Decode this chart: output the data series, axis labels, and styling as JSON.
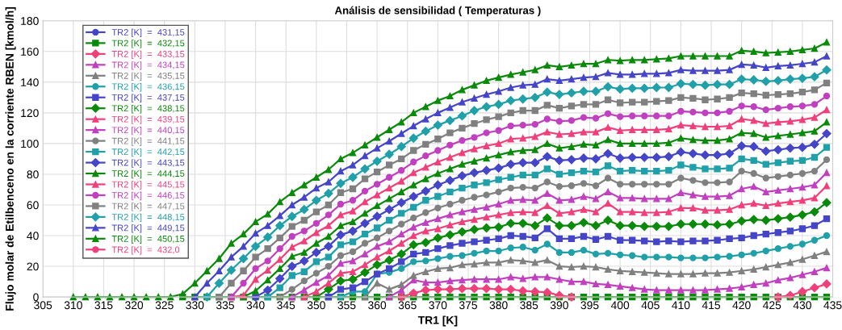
{
  "chart_data": {
    "type": "line",
    "title": "Análisis de sensibilidad ( Temperaturas )",
    "xlabel": "TR1 [K]",
    "ylabel": "Flujo molar de Etilbenceno en la corriente RBEN [kmol/h]",
    "x": [
      310,
      312,
      314,
      316,
      318,
      320,
      322,
      324,
      326,
      328,
      330,
      332,
      334,
      336,
      338,
      340,
      342,
      344,
      346,
      348,
      350,
      352,
      354,
      356,
      358,
      360,
      362,
      364,
      366,
      368,
      370,
      372,
      374,
      376,
      378,
      380,
      382,
      384,
      386,
      388,
      390,
      392,
      394,
      396,
      398,
      400,
      402,
      404,
      406,
      408,
      410,
      412,
      414,
      416,
      418,
      420,
      422,
      424,
      426,
      428,
      430,
      432,
      434
    ],
    "xlim": [
      305,
      435
    ],
    "xticks": [
      305,
      310,
      315,
      320,
      325,
      330,
      335,
      340,
      345,
      350,
      355,
      360,
      365,
      370,
      375,
      380,
      385,
      390,
      395,
      400,
      405,
      410,
      415,
      420,
      425,
      430,
      435
    ],
    "ylim": [
      0,
      180
    ],
    "yticks": [
      0,
      20,
      40,
      60,
      80,
      100,
      120,
      140,
      160,
      180
    ],
    "grid": true,
    "legend": "top left",
    "series": [
      {
        "name": "TR2 [K]  =  431,15",
        "color": "#4545c8",
        "marker": "circle",
        "values": [
          null,
          null,
          null,
          null,
          null,
          null,
          null,
          null,
          null,
          null,
          null,
          null,
          null,
          null,
          null,
          null,
          null,
          null,
          null,
          null,
          null,
          null,
          null,
          null,
          null,
          null,
          null,
          null,
          null,
          null,
          null,
          null,
          null,
          null,
          null,
          null,
          null,
          null,
          null,
          null,
          null,
          null,
          null,
          null,
          null,
          null,
          null,
          null,
          null,
          null,
          null,
          null,
          null,
          null,
          null,
          null,
          null,
          null,
          null,
          null,
          null,
          null,
          null
        ]
      },
      {
        "name": "TR2 [K]  =  432,15",
        "color": "#0a8a0a",
        "marker": "square",
        "values": [
          null,
          null,
          null,
          null,
          null,
          null,
          null,
          null,
          null,
          0,
          0,
          0,
          0,
          0,
          0,
          0,
          0,
          0,
          0,
          0,
          0,
          0,
          0,
          0,
          0,
          0,
          0,
          0,
          0,
          0,
          0,
          0,
          0,
          0,
          0,
          0,
          0,
          0,
          0,
          0,
          0,
          0,
          0,
          0,
          0,
          0,
          0,
          0,
          0,
          0,
          0,
          0,
          0,
          0,
          0,
          0,
          0,
          0,
          0,
          0,
          0,
          0,
          0
        ]
      },
      {
        "name": "TR2 [K]  =  433,15",
        "color": "#f0407a",
        "marker": "diamond",
        "values": [
          null,
          null,
          null,
          null,
          null,
          null,
          null,
          null,
          null,
          null,
          null,
          null,
          null,
          null,
          null,
          null,
          null,
          null,
          null,
          null,
          null,
          null,
          null,
          null,
          null,
          null,
          null,
          0,
          2.5,
          4.5,
          5,
          5,
          5.5,
          5.5,
          5.5,
          5,
          5,
          4,
          3.5,
          3,
          1,
          0,
          null,
          null,
          null,
          null,
          null,
          null,
          null,
          null,
          null,
          null,
          null,
          null,
          null,
          null,
          null,
          null,
          0,
          1,
          3.5,
          6,
          8.5
        ]
      },
      {
        "name": "TR2 [K]  =  434,15",
        "color": "#c040c0",
        "marker": "triangle",
        "values": [
          null,
          null,
          null,
          null,
          null,
          null,
          null,
          null,
          null,
          null,
          null,
          null,
          null,
          null,
          null,
          null,
          null,
          null,
          null,
          null,
          null,
          null,
          null,
          null,
          null,
          null,
          0,
          4.5,
          11,
          9.5,
          9.5,
          10.5,
          11,
          11.5,
          11.5,
          11.5,
          13,
          12,
          13,
          13,
          11.5,
          10,
          10,
          8.5,
          8,
          7,
          6,
          5,
          4.5,
          4.5,
          4.5,
          4.5,
          4.5,
          5,
          5.5,
          6.5,
          8,
          9,
          11,
          12.5,
          14.5,
          16.5,
          19
        ]
      },
      {
        "name": "TR2 [K]  =  435,15",
        "color": "#808080",
        "marker": "triangle",
        "values": [
          null,
          null,
          null,
          null,
          null,
          null,
          null,
          null,
          null,
          null,
          null,
          null,
          null,
          null,
          null,
          null,
          null,
          null,
          null,
          null,
          null,
          null,
          null,
          null,
          0,
          9,
          5,
          8,
          14,
          16.5,
          18.5,
          19,
          21,
          21.5,
          22.5,
          22.5,
          24,
          23.5,
          22.5,
          24,
          20,
          19.5,
          20,
          19.5,
          18,
          17,
          16.5,
          16,
          15.5,
          15,
          15,
          15,
          15.5,
          15.5,
          16,
          17,
          18,
          19.5,
          21,
          22.5,
          24.5,
          27,
          29.5
        ]
      },
      {
        "name": "TR2 [K]  =  436,15",
        "color": "#20a0a8",
        "marker": "circle",
        "values": [
          null,
          null,
          null,
          null,
          null,
          null,
          null,
          null,
          null,
          null,
          null,
          null,
          null,
          null,
          null,
          null,
          null,
          null,
          null,
          null,
          null,
          null,
          0,
          3.5,
          3.5,
          15,
          16,
          18.5,
          23,
          23.5,
          25,
          26.5,
          27,
          28.5,
          30,
          30,
          32,
          32.5,
          30.5,
          34.5,
          29,
          29,
          30.5,
          28,
          28.5,
          27.5,
          27,
          26,
          26,
          26,
          25.5,
          25.5,
          25.5,
          26,
          26.5,
          27.5,
          28.5,
          30,
          31.5,
          33,
          34.5,
          37,
          40
        ]
      },
      {
        "name": "TR2 [K]  =  437,15",
        "color": "#4545c8",
        "marker": "square",
        "values": [
          null,
          null,
          null,
          null,
          null,
          null,
          null,
          null,
          null,
          null,
          null,
          null,
          null,
          null,
          null,
          null,
          null,
          null,
          null,
          null,
          null,
          0,
          5,
          6,
          10,
          15,
          18.5,
          23,
          28,
          29,
          31.5,
          33.5,
          35,
          36,
          37,
          38,
          40,
          39.5,
          38.5,
          44.5,
          38,
          38,
          39.5,
          37.5,
          39.5,
          37,
          37,
          36.5,
          36,
          36.5,
          36,
          36.5,
          36.5,
          37,
          38,
          38.5,
          40,
          41,
          42,
          43,
          44.5,
          46.5,
          51
        ]
      },
      {
        "name": "TR2 [K]  =  438,15",
        "color": "#0a8a0a",
        "marker": "diamond",
        "values": [
          null,
          null,
          null,
          null,
          null,
          null,
          null,
          null,
          null,
          null,
          null,
          null,
          null,
          null,
          null,
          null,
          null,
          null,
          null,
          null,
          0,
          5,
          10.5,
          11.5,
          16,
          21,
          24,
          28,
          34,
          35.5,
          38.5,
          40.5,
          42.5,
          44,
          45,
          45.5,
          48,
          48,
          46.5,
          51.5,
          46.5,
          46.5,
          48.5,
          46.5,
          50,
          46.5,
          46.5,
          46,
          46,
          46,
          47.5,
          47.5,
          47.5,
          47,
          47.5,
          49.5,
          50.5,
          50,
          51,
          52,
          53.5,
          55.5,
          61.5
        ]
      },
      {
        "name": "TR2 [K]  =  439,15",
        "color": "#f0407a",
        "marker": "triangle",
        "values": [
          null,
          null,
          null,
          null,
          null,
          null,
          null,
          null,
          null,
          null,
          null,
          null,
          null,
          null,
          null,
          null,
          null,
          null,
          null,
          0,
          3.5,
          9,
          15.5,
          16.5,
          21,
          26,
          30,
          35,
          40,
          43,
          44.5,
          47,
          49,
          50.5,
          52,
          53.5,
          55,
          55.5,
          55,
          59.5,
          54.5,
          55.5,
          57,
          55.5,
          61,
          55.5,
          55.5,
          55,
          55,
          55.5,
          58,
          58,
          56.5,
          56.5,
          57,
          60,
          61,
          59.5,
          61,
          62,
          63,
          64.5,
          72.5
        ]
      },
      {
        "name": "TR2 [K]  =  440,15",
        "color": "#c040c0",
        "marker": "triangle",
        "values": [
          null,
          null,
          null,
          null,
          null,
          null,
          null,
          null,
          null,
          null,
          null,
          null,
          null,
          null,
          null,
          null,
          null,
          null,
          0,
          4.5,
          9.5,
          14,
          22,
          23.5,
          28,
          33,
          36,
          41,
          45.5,
          48.5,
          51,
          53.5,
          55.5,
          57,
          58.5,
          60.5,
          63,
          63.5,
          63,
          67.5,
          63,
          63.5,
          65.5,
          64,
          68.5,
          64.5,
          64.5,
          64,
          64,
          64,
          68,
          66.5,
          65.5,
          65.5,
          66,
          70.5,
          72,
          68.5,
          69.5,
          70.5,
          71.5,
          73,
          81
        ]
      },
      {
        "name": "TR2 [K]  =  441,15",
        "color": "#808080",
        "marker": "circle",
        "values": [
          null,
          null,
          null,
          null,
          null,
          null,
          null,
          null,
          null,
          null,
          null,
          null,
          null,
          null,
          null,
          null,
          null,
          0,
          5,
          10.5,
          15.5,
          20,
          27,
          29.5,
          35,
          38.5,
          43,
          47.5,
          51.5,
          55,
          58,
          60.5,
          63,
          65,
          66.5,
          68.5,
          71,
          71.5,
          71,
          75,
          72,
          72.5,
          74,
          72.5,
          77.5,
          73.5,
          73.5,
          73.5,
          73.5,
          73.5,
          77.5,
          76,
          74.5,
          74.5,
          75,
          82,
          80.5,
          77.5,
          78.5,
          79.5,
          80.5,
          82,
          89.5
        ]
      },
      {
        "name": "TR2 [K]  =  442,15",
        "color": "#20a0a8",
        "marker": "square",
        "values": [
          null,
          null,
          null,
          null,
          null,
          null,
          null,
          null,
          null,
          null,
          null,
          null,
          null,
          null,
          null,
          null,
          0,
          6,
          14,
          16.5,
          23,
          26,
          34,
          36,
          41,
          45,
          50,
          54.5,
          58.5,
          63,
          65.5,
          68.5,
          71,
          73,
          74.5,
          76.5,
          78,
          79.5,
          79.5,
          83.5,
          80,
          81,
          82,
          81.5,
          85.5,
          82,
          82.5,
          82,
          82,
          82.5,
          86,
          84.5,
          83.5,
          83.5,
          84,
          90,
          89,
          86.5,
          87.5,
          88.5,
          89,
          91,
          97.5
        ]
      },
      {
        "name": "TR2 [K]  =  443,15",
        "color": "#4545c8",
        "marker": "diamond",
        "values": [
          null,
          null,
          null,
          null,
          null,
          null,
          null,
          null,
          null,
          null,
          null,
          null,
          null,
          null,
          null,
          0,
          4.5,
          12,
          20,
          23.5,
          29,
          33,
          40.5,
          43,
          48,
          52.5,
          57,
          61.5,
          65.5,
          69,
          73,
          76,
          79,
          81,
          82.5,
          84,
          86.5,
          87.5,
          87.5,
          91.5,
          89,
          89.5,
          90.5,
          90,
          93.5,
          90.5,
          91,
          91,
          91,
          91.5,
          94.5,
          93.5,
          92.5,
          92.5,
          93.5,
          98.5,
          98,
          95,
          96,
          97,
          97.5,
          99.5,
          106.5
        ]
      },
      {
        "name": "TR2 [K]  =  444,15",
        "color": "#0a8a0a",
        "marker": "triangle",
        "values": [
          null,
          null,
          null,
          null,
          null,
          null,
          null,
          null,
          null,
          null,
          null,
          null,
          null,
          null,
          0,
          4,
          11,
          18.5,
          26.5,
          29,
          35,
          39.5,
          46.5,
          49,
          54.5,
          59.5,
          64,
          68.5,
          73,
          77,
          80.5,
          83.5,
          86.5,
          88.5,
          90.5,
          92.5,
          94.5,
          95.5,
          96,
          100,
          97,
          98,
          99.5,
          99,
          102.5,
          100,
          100,
          100,
          100,
          100.5,
          103.5,
          102.5,
          102,
          102,
          103,
          107,
          106.5,
          104,
          105,
          106,
          107,
          108,
          114
        ]
      },
      {
        "name": "TR2 [K]  =  445,15",
        "color": "#f0407a",
        "marker": "triangle",
        "values": [
          null,
          null,
          null,
          null,
          null,
          null,
          null,
          null,
          null,
          null,
          null,
          null,
          null,
          0,
          1,
          11.5,
          17.5,
          24.5,
          32.5,
          36.5,
          42,
          46.5,
          53.5,
          56,
          62,
          66.5,
          71,
          75.5,
          81,
          84.5,
          88,
          91,
          94,
          96.5,
          98.5,
          100,
          103,
          103.5,
          104.5,
          107.5,
          106,
          106.5,
          107.5,
          107.5,
          110.5,
          108.5,
          109,
          109,
          109,
          109.5,
          112,
          111.5,
          111,
          111,
          111.5,
          116,
          115,
          113,
          114,
          114.5,
          115.5,
          117,
          122
        ]
      },
      {
        "name": "TR2 [K]  =  446,15",
        "color": "#c040c0",
        "marker": "circle",
        "values": [
          null,
          null,
          null,
          null,
          null,
          null,
          null,
          null,
          null,
          null,
          null,
          null,
          null,
          0,
          9,
          18.5,
          23.5,
          31.5,
          39.5,
          43,
          48,
          53.5,
          60.5,
          63,
          69,
          73.5,
          78,
          82.5,
          88,
          92,
          95.5,
          99,
          102,
          104,
          107,
          108.5,
          111.5,
          112,
          112.5,
          116,
          114.5,
          115,
          117,
          116.5,
          119.5,
          117.5,
          118,
          118,
          118,
          118,
          121,
          120.5,
          120,
          120,
          121,
          124.5,
          124,
          122,
          123,
          124,
          124.5,
          125.5,
          131
        ]
      },
      {
        "name": "TR2 [K]  =  447,15",
        "color": "#808080",
        "marker": "square",
        "values": [
          null,
          null,
          null,
          null,
          null,
          null,
          null,
          null,
          null,
          null,
          null,
          null,
          0,
          9,
          17,
          26,
          31.5,
          38.5,
          46,
          50,
          55.5,
          60,
          68,
          70.5,
          77,
          81.5,
          86,
          90,
          95.5,
          99.5,
          103,
          107,
          110,
          113,
          115.5,
          117.5,
          120,
          121.5,
          121.5,
          125,
          123,
          124.5,
          125.5,
          125.5,
          128.5,
          126.5,
          127,
          127,
          127.5,
          128,
          130,
          129.5,
          128.5,
          129,
          130,
          133,
          132.5,
          131.5,
          132,
          132.5,
          133.5,
          135,
          139.5
        ]
      },
      {
        "name": "TR2 [K]  =  448,15",
        "color": "#20a0a8",
        "marker": "diamond",
        "values": [
          null,
          null,
          null,
          null,
          null,
          null,
          null,
          null,
          null,
          null,
          null,
          0,
          9,
          17.5,
          25,
          33,
          39,
          46.5,
          52.5,
          57,
          63,
          67.5,
          74,
          78,
          83.5,
          88.5,
          93,
          98,
          103.5,
          108,
          112,
          115,
          118,
          121.5,
          124,
          125.5,
          128,
          129,
          130,
          133.5,
          132,
          133,
          134,
          134,
          137,
          135.5,
          136,
          136,
          136.5,
          136.5,
          139,
          138.5,
          138,
          138.5,
          138.5,
          142,
          141.5,
          140.5,
          141,
          142,
          142.5,
          143.5,
          148
        ]
      },
      {
        "name": "TR2 [K]  =  449,15",
        "color": "#4545c8",
        "marker": "triangle",
        "values": [
          null,
          null,
          null,
          null,
          null,
          null,
          null,
          null,
          null,
          null,
          0,
          9,
          17,
          26,
          33,
          41.5,
          46.5,
          53,
          60,
          65,
          71,
          75,
          82,
          86,
          92,
          97,
          101.5,
          106.5,
          111.5,
          116,
          120,
          123.5,
          127,
          129.5,
          132,
          134,
          136.5,
          138,
          138.5,
          142,
          141,
          142,
          143,
          143.5,
          146,
          145,
          145,
          145.5,
          145.5,
          146,
          148,
          147.5,
          147.5,
          147.5,
          148,
          151.5,
          151,
          149.5,
          150.5,
          151,
          152,
          153,
          157
        ]
      },
      {
        "name": "TR2 [K]  =  450,15",
        "color": "#0a8a0a",
        "marker": "triangle",
        "values": [
          0,
          0,
          0,
          0,
          0,
          0,
          0,
          0,
          0,
          2,
          9,
          17,
          25,
          35,
          41,
          49,
          54,
          62,
          68,
          73,
          78,
          83,
          90,
          94,
          99,
          104,
          109,
          114,
          120,
          124,
          128,
          131,
          135,
          138,
          141,
          143,
          145,
          146.5,
          148,
          151,
          150,
          151,
          152,
          152,
          154.5,
          154,
          154.5,
          154.5,
          155,
          155.5,
          157,
          157,
          157,
          157,
          157,
          160.5,
          160,
          159,
          159.5,
          160,
          161,
          162,
          166
        ]
      },
      {
        "name": "TR2 [K]  =  432,0",
        "color": "#f0407a",
        "marker": "circle",
        "values": [
          null,
          null,
          null,
          null,
          null,
          null,
          null,
          null,
          null,
          null,
          null,
          null,
          null,
          null,
          null,
          null,
          null,
          null,
          null,
          null,
          null,
          null,
          null,
          null,
          null,
          null,
          null,
          null,
          null,
          null,
          null,
          null,
          null,
          null,
          null,
          null,
          null,
          null,
          null,
          null,
          null,
          null,
          null,
          null,
          null,
          null,
          null,
          null,
          null,
          null,
          null,
          null,
          null,
          null,
          null,
          null,
          null,
          null,
          null,
          null,
          null,
          null,
          null
        ]
      }
    ]
  }
}
